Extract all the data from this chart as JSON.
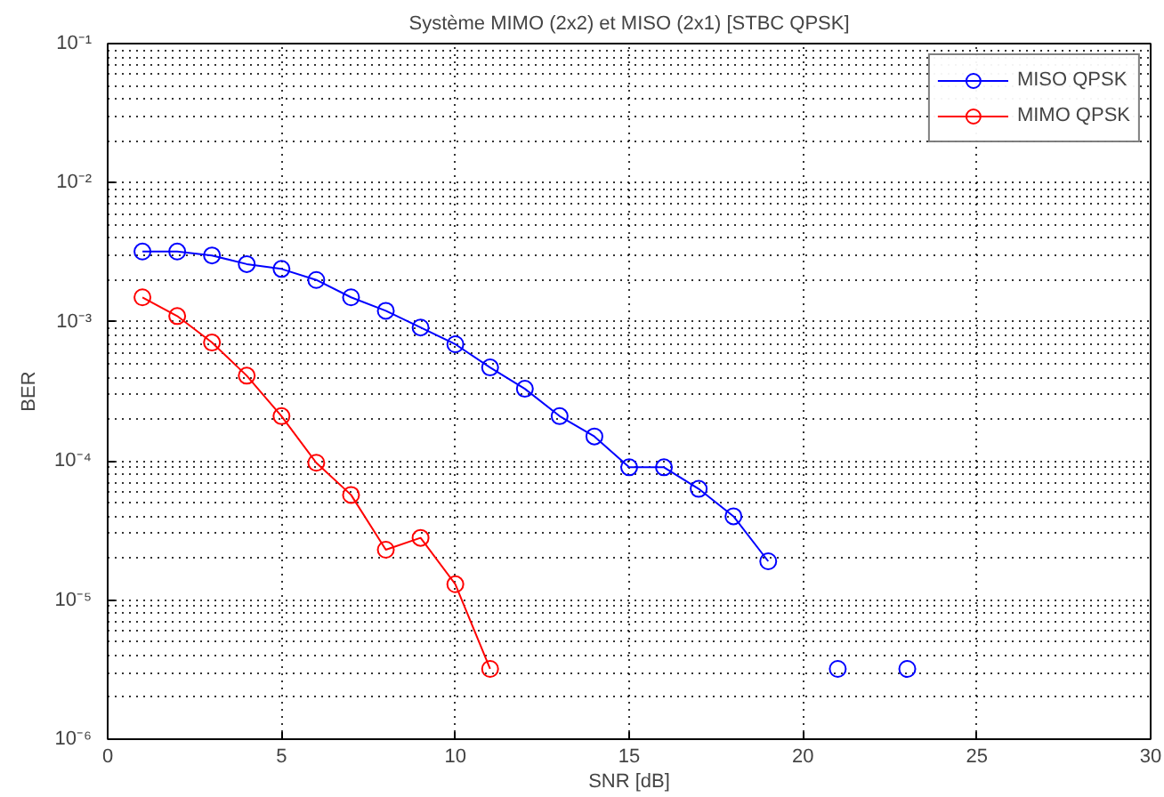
{
  "chart_data": {
    "type": "line",
    "title": "Système MIMO (2x2) et MISO (2x1) [STBC QPSK]",
    "xlabel": "SNR [dB]",
    "ylabel": "BER",
    "x": [
      1,
      2,
      3,
      4,
      5,
      6,
      7,
      8,
      9,
      10,
      11,
      12,
      13,
      14,
      15,
      16,
      17,
      18,
      19,
      20,
      21,
      22,
      23
    ],
    "series": [
      {
        "name": "MISO QPSK",
        "color": "#0000ff",
        "values": [
          0.0032,
          0.0032,
          0.003,
          0.0026,
          0.0024,
          0.002,
          0.0015,
          0.0012,
          0.00091,
          0.00069,
          0.00047,
          0.00033,
          0.00021,
          0.00015,
          9e-05,
          9e-05,
          6.3e-05,
          4e-05,
          1.9e-05,
          null,
          3.2e-06,
          null,
          3.2e-06
        ]
      },
      {
        "name": "MIMO QPSK",
        "color": "#ff0000",
        "x": [
          1,
          2,
          3,
          4,
          5,
          6,
          7,
          8,
          9,
          10,
          11
        ],
        "values": [
          0.0015,
          0.0011,
          0.00071,
          0.00041,
          0.00021,
          9.7e-05,
          5.7e-05,
          2.3e-05,
          2.8e-05,
          1.3e-05,
          3.2e-06
        ]
      }
    ],
    "xlim": [
      0,
      30
    ],
    "xticks": [
      0,
      5,
      10,
      15,
      20,
      25,
      30
    ],
    "ylim": [
      1e-06,
      0.1
    ],
    "yticks": [
      {
        "value": 1e-06,
        "label": "10⁻⁶"
      },
      {
        "value": 1e-05,
        "label": "10⁻⁵"
      },
      {
        "value": 0.0001,
        "label": "10⁻⁴"
      },
      {
        "value": 0.001,
        "label": "10⁻³"
      },
      {
        "value": 0.01,
        "label": "10⁻²"
      },
      {
        "value": 0.1,
        "label": "10⁻¹"
      }
    ],
    "log": "y",
    "grid": true,
    "legend": "top right",
    "marker": "circle",
    "line_style": "solid"
  }
}
